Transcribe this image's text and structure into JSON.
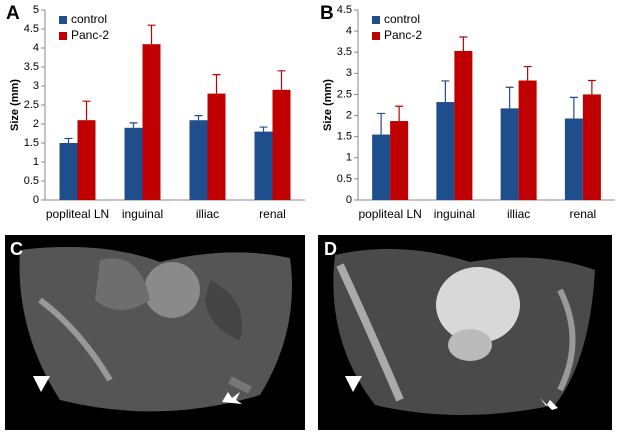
{
  "chart_data": [
    {
      "type": "bar",
      "label": "A",
      "y_label": "Size (mm)",
      "categories": [
        "popliteal LN",
        "inguinal",
        "illiac",
        "renal"
      ],
      "series": [
        {
          "name": "control",
          "color": "#1f4e8c",
          "values": [
            1.5,
            1.9,
            2.1,
            1.8
          ],
          "errors": [
            0.12,
            0.13,
            0.12,
            0.12
          ]
        },
        {
          "name": "Panc-2",
          "color": "#c00000",
          "values": [
            2.1,
            4.1,
            2.8,
            2.9
          ],
          "errors": [
            0.5,
            0.5,
            0.5,
            0.5
          ]
        }
      ],
      "ylim": [
        0,
        5
      ],
      "yticks": [
        0,
        0.5,
        1,
        1.5,
        2,
        2.5,
        3,
        3.5,
        4,
        4.5,
        5
      ],
      "legend": "top-left"
    },
    {
      "type": "bar",
      "label": "B",
      "y_label": "Size (mm)",
      "categories": [
        "popliteal LN",
        "inguinal",
        "illiac",
        "renal"
      ],
      "series": [
        {
          "name": "control",
          "color": "#1f4e8c",
          "values": [
            1.55,
            2.32,
            2.17,
            1.93
          ],
          "errors": [
            0.5,
            0.5,
            0.5,
            0.5
          ]
        },
        {
          "name": "Panc-2",
          "color": "#c00000",
          "values": [
            1.87,
            3.53,
            2.83,
            2.5
          ],
          "errors": [
            0.35,
            0.33,
            0.33,
            0.33
          ]
        }
      ],
      "ylim": [
        0,
        4.5
      ],
      "yticks": [
        0,
        0.5,
        1,
        1.5,
        2,
        2.5,
        3,
        3.5,
        4,
        4.5
      ],
      "legend": "top-left"
    }
  ],
  "images": [
    {
      "label": "C"
    },
    {
      "label": "D"
    }
  ]
}
